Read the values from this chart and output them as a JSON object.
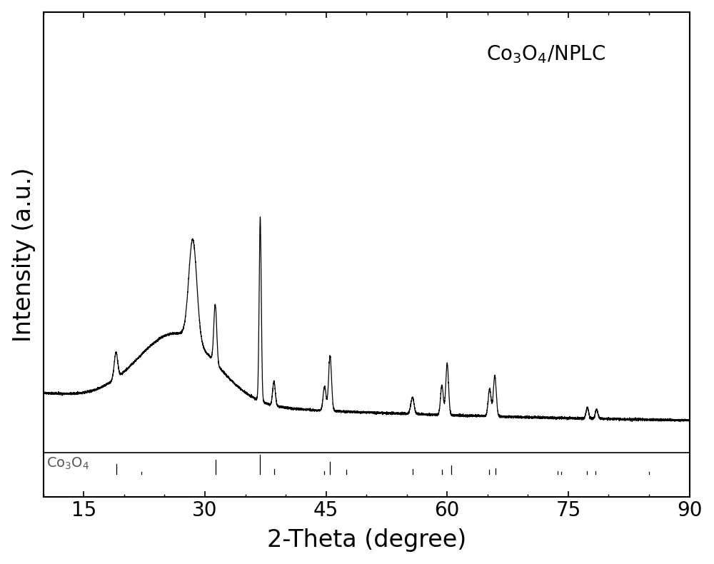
{
  "xlabel": "2-Theta (degree)",
  "ylabel": "Intensity (a.u.)",
  "xlim": [
    10,
    90
  ],
  "background_color": "#ffffff",
  "line_color": "#000000",
  "tick_label_fontsize": 20,
  "axis_label_fontsize": 24,
  "annotation_fontsize": 20,
  "ref_label_fontsize": 14,
  "xticks": [
    15,
    30,
    45,
    60,
    75,
    90
  ],
  "ref_label": "Co$_3$O$_4$",
  "ref_lines": [
    19.0,
    22.1,
    31.3,
    36.85,
    38.6,
    44.8,
    45.5,
    47.5,
    55.7,
    59.35,
    60.5,
    65.2,
    66.0,
    73.7,
    74.1,
    77.3,
    78.4,
    85.0
  ],
  "ref_heights_rel": [
    0.55,
    0.12,
    0.75,
    1.0,
    0.28,
    0.18,
    0.65,
    0.22,
    0.28,
    0.22,
    0.45,
    0.22,
    0.32,
    0.18,
    0.12,
    0.18,
    0.15,
    0.12
  ]
}
